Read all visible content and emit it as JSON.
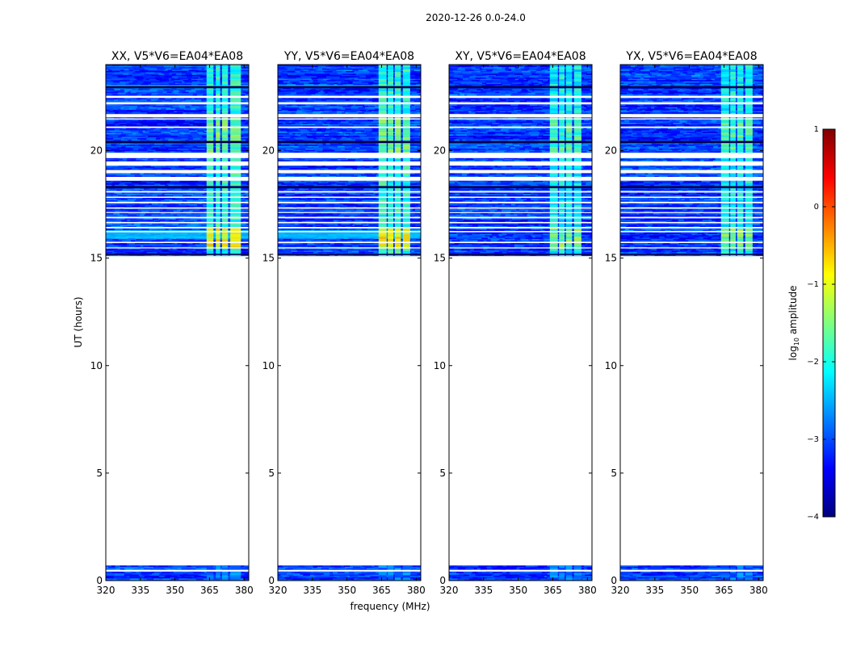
{
  "figure_title": "2020-12-26 0.0-24.0",
  "chart_data": {
    "type": "heatmap",
    "suptitle": "2020-12-26 0.0-24.0",
    "xlabel": "frequency (MHz)",
    "ylabel": "UT (hours)",
    "xlim": [
      320,
      382
    ],
    "ylim": [
      0,
      24
    ],
    "xticks": [
      320,
      335,
      350,
      365,
      380
    ],
    "xtick_labels": [
      "320",
      "335",
      "350",
      "365",
      "380"
    ],
    "yticks": [
      0,
      5,
      10,
      15,
      20
    ],
    "ytick_labels": [
      "0",
      "5",
      "10",
      "15",
      "20"
    ],
    "panels": [
      {
        "title": "XX, V5*V6=EA04*EA08",
        "pol": "XX",
        "hot_channels": [
          [
            363.7,
            366.7
          ],
          [
            367.7,
            369.6
          ],
          [
            370.4,
            373.0
          ],
          [
            374.0,
            378.6
          ]
        ]
      },
      {
        "title": "YY, V5*V6=EA04*EA08",
        "pol": "YY",
        "hot_channels": [
          [
            363.7,
            367.2
          ],
          [
            367.7,
            370.1
          ],
          [
            370.7,
            373.4
          ],
          [
            374.2,
            377.4
          ]
        ]
      },
      {
        "title": "XY, V5*V6=EA04*EA08",
        "pol": "XY",
        "hot_channels": [
          [
            363.7,
            367.2
          ],
          [
            367.7,
            370.1
          ],
          [
            370.7,
            373.4
          ],
          [
            374.2,
            377.4
          ]
        ]
      },
      {
        "title": "YX, V5*V6=EA04*EA08",
        "pol": "YX",
        "hot_channels": [
          [
            363.7,
            367.2
          ],
          [
            367.7,
            370.1
          ],
          [
            370.7,
            373.4
          ],
          [
            374.2,
            377.4
          ]
        ]
      }
    ],
    "data_coverage_hours": [
      [
        0.0,
        0.7
      ],
      [
        15.1,
        24.0
      ]
    ],
    "flagged_gaps_hours": [
      [
        0.7,
        15.1
      ]
    ],
    "colorbar": {
      "label": "log10 amplitude",
      "label_base": "log",
      "label_sub": "10",
      "label_rest": " amplitude",
      "min": -4,
      "max": 1,
      "ticks": [
        1,
        0,
        -1,
        -2,
        -3,
        -4
      ],
      "tick_labels": [
        "1",
        "0",
        "−1",
        "−2",
        "−3",
        "−4"
      ],
      "colors": [
        "#00007f",
        "#0000ff",
        "#007fff",
        "#00ffff",
        "#7fff7f",
        "#ffff00",
        "#ff7f00",
        "#ff0000",
        "#7f0000"
      ]
    }
  }
}
